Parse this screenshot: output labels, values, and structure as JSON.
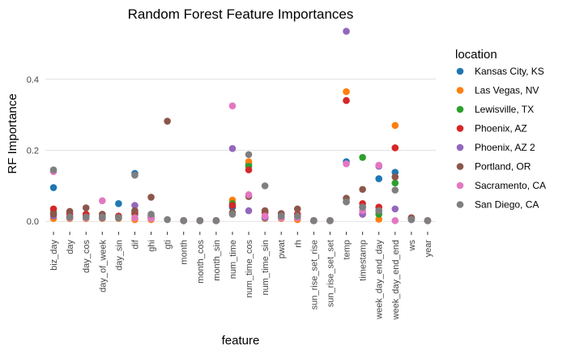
{
  "chart_data": {
    "type": "scatter",
    "title": "Random Forest Feature Importances",
    "xlabel": "feature",
    "ylabel": "RF Importance",
    "ylim": [
      -0.02,
      0.55
    ],
    "yticks": [
      0.0,
      0.2,
      0.4
    ],
    "ytick_labels": [
      "0.0",
      "0.2",
      "0.4"
    ],
    "grid": true,
    "legend_title": "location",
    "legend_position": "right",
    "categories": [
      "biz_day",
      "day",
      "day_cos",
      "day_of_week",
      "day_sin",
      "dif",
      "ghi",
      "gti",
      "month",
      "month_cos",
      "month_sin",
      "num_time",
      "num_time_cos",
      "num_time_sin",
      "pwat",
      "rh",
      "sun_rise_set_rise",
      "sun_rise_set_set",
      "temp",
      "timestamp",
      "week_day_end_day",
      "week_day_end_end",
      "ws",
      "year"
    ],
    "series": [
      {
        "name": "Kansas City, KS",
        "color": "#1f77b4",
        "values": [
          0.095,
          0.012,
          0.015,
          0.01,
          0.05,
          0.135,
          0.01,
          null,
          0.002,
          0.002,
          0.002,
          0.04,
          0.16,
          0.012,
          0.012,
          0.01,
          0.002,
          0.002,
          0.168,
          0.04,
          0.12,
          0.138,
          0.008,
          0.002
        ]
      },
      {
        "name": "Las Vegas, NV",
        "color": "#ff7f0e",
        "values": [
          0.008,
          0.008,
          0.008,
          0.008,
          0.008,
          0.005,
          0.005,
          null,
          0.002,
          0.002,
          0.002,
          0.06,
          0.168,
          0.008,
          0.008,
          0.005,
          0.002,
          0.002,
          0.365,
          0.02,
          0.006,
          0.27,
          0.006,
          0.002
        ]
      },
      {
        "name": "Lewisville, TX",
        "color": "#2ca02c",
        "values": [
          0.025,
          0.01,
          0.01,
          0.01,
          0.01,
          0.02,
          0.01,
          null,
          0.002,
          0.002,
          0.002,
          0.05,
          0.155,
          0.01,
          0.01,
          0.012,
          0.002,
          0.002,
          0.055,
          0.18,
          0.02,
          0.108,
          0.006,
          0.002
        ]
      },
      {
        "name": "Phoenix, AZ",
        "color": "#d62728",
        "values": [
          0.035,
          0.02,
          0.02,
          0.012,
          0.015,
          0.025,
          0.015,
          null,
          0.002,
          0.002,
          0.002,
          0.045,
          0.145,
          0.025,
          0.02,
          0.02,
          0.002,
          0.002,
          0.34,
          0.05,
          0.04,
          0.207,
          0.01,
          0.002
        ]
      },
      {
        "name": "Phoenix, AZ 2",
        "color": "#9467bd",
        "values": [
          0.015,
          0.012,
          0.01,
          0.01,
          0.01,
          0.045,
          0.01,
          null,
          0.002,
          0.002,
          0.002,
          0.205,
          0.03,
          0.01,
          0.01,
          0.01,
          0.002,
          0.002,
          0.535,
          0.02,
          0.155,
          0.035,
          0.005,
          0.002
        ]
      },
      {
        "name": "Portland, OR",
        "color": "#8c564b",
        "values": [
          0.02,
          0.028,
          0.038,
          0.02,
          0.012,
          0.03,
          0.068,
          0.282,
          0.002,
          0.002,
          0.002,
          0.025,
          0.07,
          0.03,
          0.022,
          0.035,
          0.002,
          0.002,
          0.065,
          0.09,
          0.03,
          0.125,
          0.01,
          0.002
        ]
      },
      {
        "name": "Sacramento, CA",
        "color": "#e377c2",
        "values": [
          0.14,
          0.01,
          0.01,
          0.058,
          0.01,
          0.01,
          0.008,
          null,
          0.002,
          0.002,
          0.002,
          0.325,
          0.075,
          0.015,
          0.01,
          0.01,
          0.002,
          0.002,
          0.162,
          0.03,
          0.158,
          0.002,
          0.005,
          0.002
        ]
      },
      {
        "name": "San Diego, CA",
        "color": "#7f7f7f",
        "values": [
          0.145,
          0.012,
          0.012,
          0.012,
          0.01,
          0.13,
          0.02,
          0.005,
          0.002,
          0.002,
          0.002,
          0.02,
          0.188,
          0.1,
          0.015,
          0.015,
          0.002,
          0.002,
          0.055,
          0.04,
          0.03,
          0.088,
          0.005,
          0.002
        ]
      }
    ]
  }
}
